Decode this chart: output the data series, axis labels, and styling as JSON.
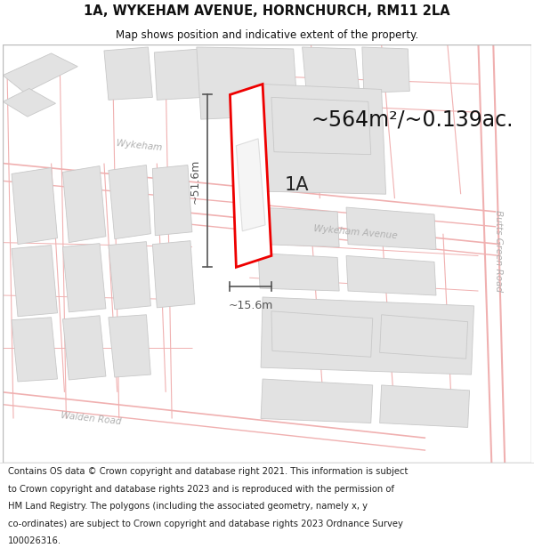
{
  "title_line1": "1A, WYKEHAM AVENUE, HORNCHURCH, RM11 2LA",
  "title_line2": "Map shows position and indicative extent of the property.",
  "area_text": "~564m²/~0.139ac.",
  "dim_horizontal": "~15.6m",
  "dim_vertical": "~51.6m",
  "label_1a": "1A",
  "footer_lines": [
    "Contains OS data © Crown copyright and database right 2021. This information is subject",
    "to Crown copyright and database rights 2023 and is reproduced with the permission of",
    "HM Land Registry. The polygons (including the associated geometry, namely x, y",
    "co-ordinates) are subject to Crown copyright and database rights 2023 Ordnance Survey",
    "100026316."
  ],
  "map_bg": "#f7f7f7",
  "block_fill": "#e2e2e2",
  "block_edge": "#c8c8c8",
  "road_line": "#f0b0b0",
  "road_label": "#b0b0b0",
  "highlight_fill": "#ffffff",
  "highlight_edge": "#ee0000",
  "dim_color": "#555555",
  "text_dark": "#222222",
  "text_title": "#111111"
}
